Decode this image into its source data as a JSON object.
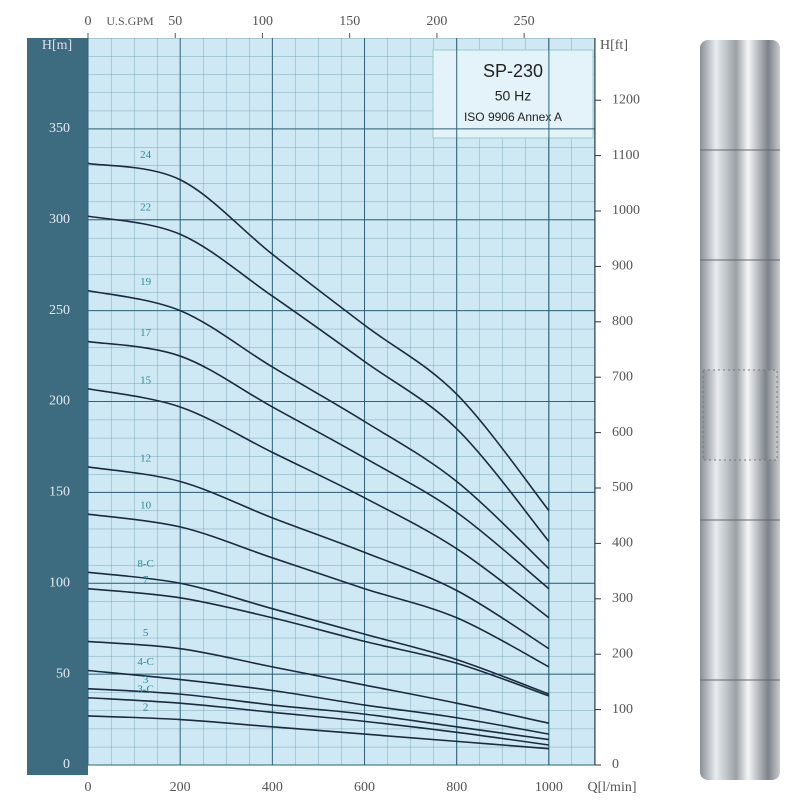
{
  "chart_data": {
    "type": "line",
    "title": "SP-230",
    "subtitle": "50 Hz",
    "annotation": "ISO 9906 Annex A",
    "x_label": "Q[l/min]",
    "y_label": "H[m]",
    "y2_label": "H[ft]",
    "x2_label": "U.S.GPM",
    "x": [
      0,
      200,
      400,
      600,
      800,
      1000
    ],
    "xlim": [
      0,
      1100
    ],
    "xticks": [
      0,
      200,
      400,
      600,
      800,
      1000
    ],
    "ylim": [
      0,
      400
    ],
    "yticks": [
      0,
      50,
      100,
      150,
      200,
      250,
      300,
      350
    ],
    "x2lim": [
      0,
      290.6
    ],
    "x2ticks": [
      0,
      50,
      100,
      150,
      200,
      250
    ],
    "y2lim": [
      0,
      1312.3
    ],
    "y2ticks": [
      0,
      100,
      200,
      300,
      400,
      500,
      600,
      700,
      800,
      900,
      1000,
      1100,
      1200
    ],
    "grid": true,
    "color": "#1c2a40",
    "series": [
      {
        "name": "24",
        "values": [
          331,
          322,
          281,
          242,
          204,
          140
        ]
      },
      {
        "name": "22",
        "values": [
          302,
          292,
          258,
          222,
          185,
          123
        ]
      },
      {
        "name": "19",
        "values": [
          261,
          250,
          219,
          189,
          156,
          108
        ]
      },
      {
        "name": "17",
        "values": [
          233,
          225,
          197,
          169,
          139,
          97
        ]
      },
      {
        "name": "15",
        "values": [
          207,
          197,
          172,
          147,
          119,
          81
        ]
      },
      {
        "name": "12",
        "values": [
          164,
          156,
          136,
          117,
          96,
          64
        ]
      },
      {
        "name": "10",
        "values": [
          138,
          131,
          114,
          97,
          81,
          54
        ]
      },
      {
        "name": "8-C",
        "values": [
          106,
          100,
          86,
          72,
          58,
          39
        ]
      },
      {
        "name": "7",
        "values": [
          97,
          92,
          81,
          68,
          56,
          38
        ]
      },
      {
        "name": "5",
        "values": [
          68,
          64,
          54,
          44,
          34,
          23
        ]
      },
      {
        "name": "4-C",
        "values": [
          52,
          47,
          41,
          33,
          26,
          17
        ]
      },
      {
        "name": "3",
        "values": [
          42,
          39,
          33,
          28,
          21,
          14
        ]
      },
      {
        "name": "3-C",
        "values": [
          37,
          34,
          29,
          24,
          18,
          11
        ]
      },
      {
        "name": "2",
        "values": [
          27,
          25,
          21,
          17,
          13,
          9
        ]
      }
    ]
  }
}
